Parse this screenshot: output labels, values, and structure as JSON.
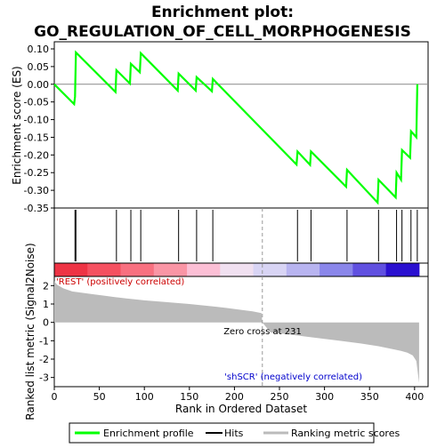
{
  "chart_data": {
    "type": "line",
    "title_line1": "Enrichment plot:",
    "title_line2": "GO_REGULATION_OF_CELL_MORPHOGENESIS",
    "es_ylabel": "Enrichment score (ES)",
    "metric_ylabel": "Ranked list metric (Signal2Noise)",
    "xlabel": "Rank in Ordered Dataset",
    "xlim": [
      0,
      415
    ],
    "es_ylim": [
      -0.35,
      0.1
    ],
    "metric_ylim": [
      -3.5,
      2.5
    ],
    "x_ticks": [
      "0",
      "50",
      "100",
      "150",
      "200",
      "250",
      "300",
      "350",
      "400"
    ],
    "es_ticks": [
      "0.10",
      "0.05",
      "0.00",
      "-0.05",
      "-0.10",
      "-0.15",
      "-0.20",
      "-0.25",
      "-0.30",
      "-0.35"
    ],
    "metric_ticks": [
      "2",
      "1",
      "0",
      "-1",
      "-2",
      "-3"
    ],
    "hits": [
      23,
      24,
      69,
      85,
      96,
      138,
      158,
      176,
      270,
      285,
      325,
      360,
      380,
      386,
      396,
      403
    ],
    "enrichment_profile": {
      "x": [
        0,
        22,
        23,
        24,
        68,
        69,
        84,
        85,
        95,
        96,
        137,
        138,
        157,
        158,
        175,
        176,
        269,
        270,
        284,
        285,
        324,
        325,
        359,
        360,
        379,
        380,
        385,
        386,
        395,
        396,
        402,
        403
      ],
      "y": [
        0.0,
        -0.056,
        -0.035,
        0.09,
        -0.022,
        0.04,
        0.002,
        0.058,
        0.034,
        0.088,
        -0.018,
        0.03,
        -0.018,
        0.02,
        -0.02,
        0.015,
        -0.227,
        -0.19,
        -0.228,
        -0.19,
        -0.29,
        -0.242,
        -0.335,
        -0.27,
        -0.32,
        -0.25,
        -0.27,
        -0.186,
        -0.208,
        -0.133,
        -0.15,
        0.0
      ]
    },
    "metric_curve": {
      "x": [
        0,
        3,
        10,
        20,
        40,
        60,
        80,
        100,
        120,
        150,
        180,
        200,
        220,
        230,
        231,
        240,
        260,
        280,
        300,
        320,
        340,
        360,
        375,
        385,
        392,
        398,
        402,
        405
      ],
      "y": [
        2.25,
        2.05,
        1.85,
        1.68,
        1.55,
        1.42,
        1.3,
        1.2,
        1.12,
        1.0,
        0.85,
        0.73,
        0.6,
        0.5,
        0.0,
        -0.55,
        -0.65,
        -0.78,
        -0.9,
        -1.02,
        -1.15,
        -1.3,
        -1.45,
        -1.55,
        -1.65,
        -1.8,
        -2.1,
        -3.3
      ]
    },
    "zero_cross_label": "Zero cross at 231",
    "zero_cross_x": 231,
    "pos_label": "'REST' (positively correlated)",
    "neg_label": "'shSCR' (negatively correlated)",
    "legend": [
      "Enrichment profile",
      "Hits",
      "Ranking metric scores"
    ],
    "colors": {
      "profile": "#00ff00",
      "hits": "#000000",
      "metric": "#bbbbbb",
      "pos_label": "#cc0000",
      "neg_label": "#0000cc",
      "bar": [
        "#ee3344",
        "#f55060",
        "#f87080",
        "#fa95a5",
        "#fcbfd5",
        "#f0e0f0",
        "#d8d4f4",
        "#b8b4f0",
        "#8a86ea",
        "#6050e0",
        "#2a10d0"
      ]
    }
  }
}
